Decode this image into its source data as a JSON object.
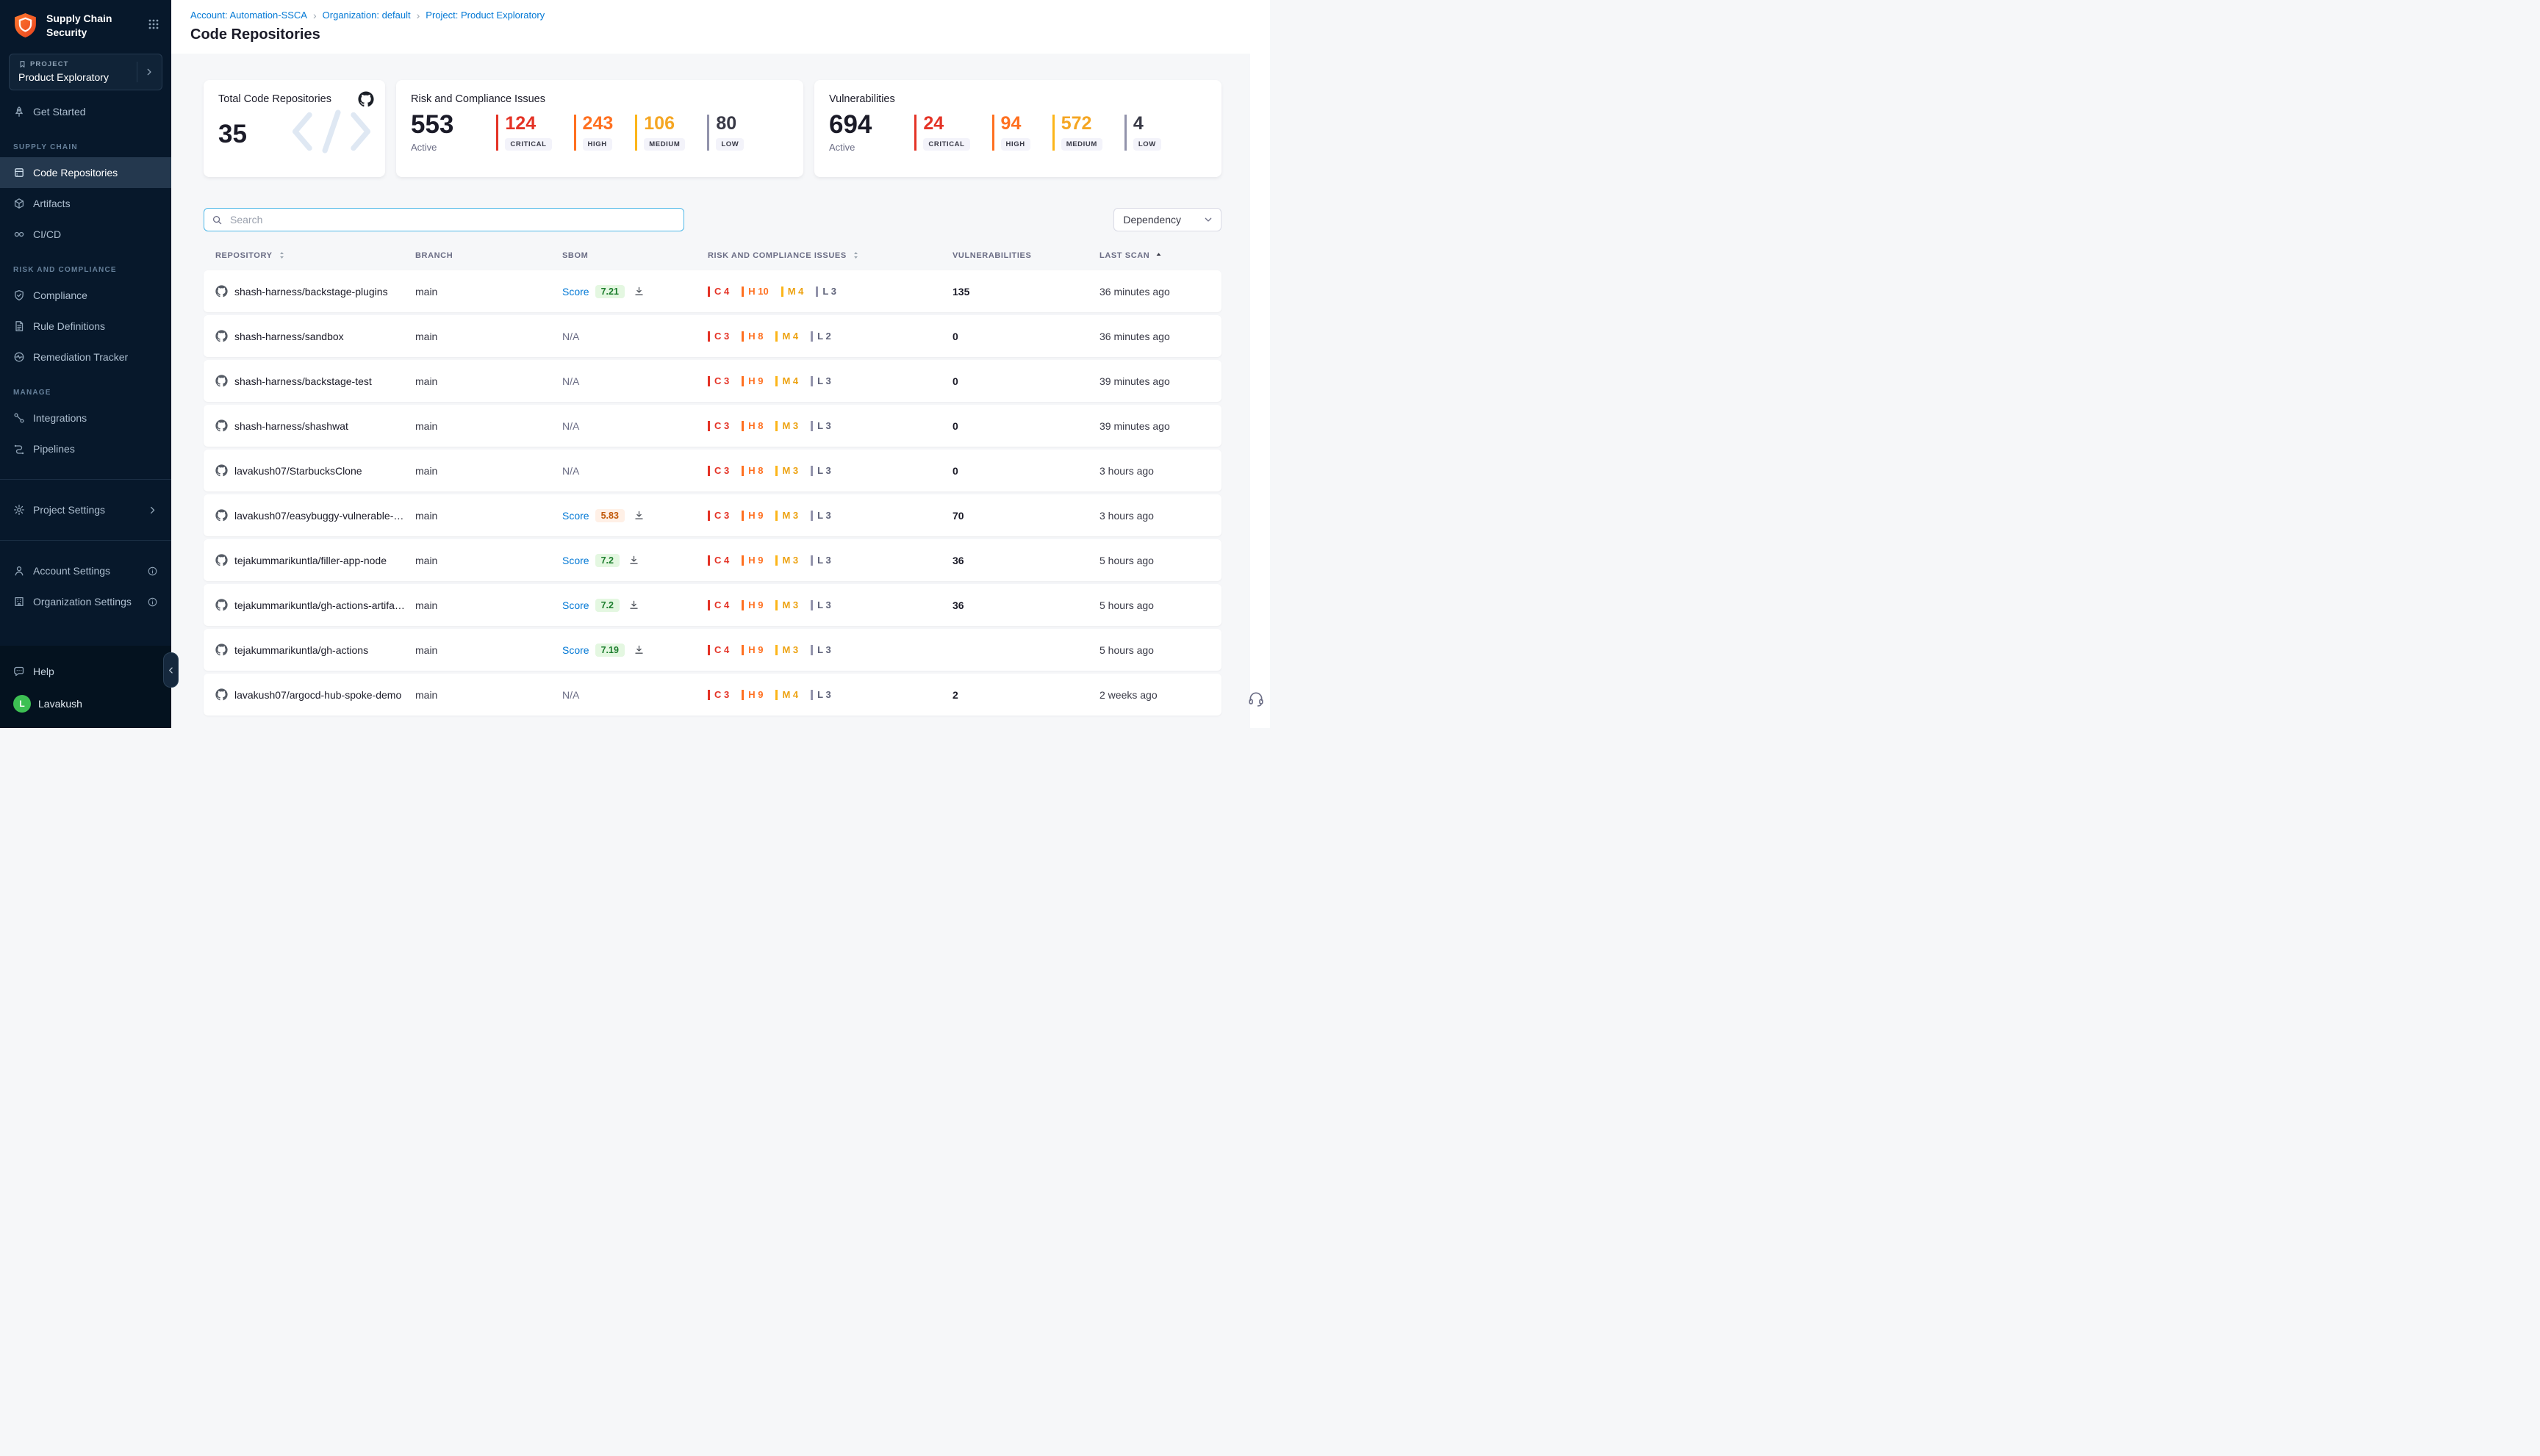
{
  "app": {
    "title": "Supply Chain Security"
  },
  "sidebar": {
    "project_label": "PROJECT",
    "project_name": "Product Exploratory",
    "nav": [
      {
        "label": "Get Started",
        "icon": "rocket"
      },
      {
        "section": "SUPPLY CHAIN"
      },
      {
        "label": "Code Repositories",
        "icon": "repo",
        "selected": true
      },
      {
        "label": "Artifacts",
        "icon": "artifact"
      },
      {
        "label": "CI/CD",
        "icon": "infinity"
      },
      {
        "section": "RISK AND COMPLIANCE"
      },
      {
        "label": "Compliance",
        "icon": "shield"
      },
      {
        "label": "Rule Definitions",
        "icon": "rules"
      },
      {
        "label": "Remediation Tracker",
        "icon": "tracker"
      },
      {
        "section": "MANAGE"
      },
      {
        "label": "Integrations",
        "icon": "integrations"
      },
      {
        "label": "Pipelines",
        "icon": "pipelines"
      },
      {
        "divider": true
      },
      {
        "label": "Project Settings",
        "icon": "gear",
        "chevron": true
      },
      {
        "divider": true
      },
      {
        "label": "Account Settings",
        "icon": "account",
        "info": true
      },
      {
        "label": "Organization Settings",
        "icon": "org",
        "info": true
      }
    ],
    "help_label": "Help",
    "user": {
      "initial": "L",
      "name": "Lavakush"
    }
  },
  "header": {
    "breadcrumbs": [
      {
        "label": "Account: Automation-SSCA"
      },
      {
        "label": "Organization: default"
      },
      {
        "label": "Project: Product Exploratory"
      }
    ],
    "title": "Code Repositories"
  },
  "summary": {
    "repos": {
      "label": "Total Code Repositories",
      "value": "35"
    },
    "risk": {
      "label": "Risk and Compliance Issues",
      "value": "553",
      "sublabel": "Active",
      "stats": [
        {
          "value": "124",
          "label": "CRITICAL",
          "sev": "critical"
        },
        {
          "value": "243",
          "label": "HIGH",
          "sev": "high"
        },
        {
          "value": "106",
          "label": "MEDIUM",
          "sev": "medium"
        },
        {
          "value": "80",
          "label": "LOW",
          "sev": "low"
        }
      ]
    },
    "vulnerabilities": {
      "label": "Vulnerabilities",
      "value": "694",
      "sublabel": "Active",
      "stats": [
        {
          "value": "24",
          "label": "CRITICAL",
          "sev": "critical"
        },
        {
          "value": "94",
          "label": "HIGH",
          "sev": "high"
        },
        {
          "value": "572",
          "label": "MEDIUM",
          "sev": "medium"
        },
        {
          "value": "4",
          "label": "LOW",
          "sev": "low"
        }
      ]
    }
  },
  "toolbar": {
    "search_placeholder": "Search",
    "filter_value": "Dependency"
  },
  "table": {
    "score_label": "Score",
    "na_label": "N/A",
    "columns": [
      {
        "label": "REPOSITORY",
        "sort": "both"
      },
      {
        "label": "BRANCH"
      },
      {
        "label": "SBOM"
      },
      {
        "label": "RISK AND COMPLIANCE ISSUES",
        "sort": "both"
      },
      {
        "label": "VULNERABILITIES"
      },
      {
        "label": "LAST SCAN",
        "sort": "asc"
      }
    ],
    "rows": [
      {
        "repo": "shash-harness/backstage-plugins",
        "branch": "main",
        "sbom": {
          "score": "7.21",
          "tone": "good"
        },
        "risk": {
          "C": 4,
          "H": 10,
          "M": 4,
          "L": 3
        },
        "vulnerabilities": "135",
        "last_scan": "36 minutes ago"
      },
      {
        "repo": "shash-harness/sandbox",
        "branch": "main",
        "sbom": null,
        "risk": {
          "C": 3,
          "H": 8,
          "M": 4,
          "L": 2
        },
        "vulnerabilities": "0",
        "last_scan": "36 minutes ago"
      },
      {
        "repo": "shash-harness/backstage-test",
        "branch": "main",
        "sbom": null,
        "risk": {
          "C": 3,
          "H": 9,
          "M": 4,
          "L": 3
        },
        "vulnerabilities": "0",
        "last_scan": "39 minutes ago"
      },
      {
        "repo": "shash-harness/shashwat",
        "branch": "main",
        "sbom": null,
        "risk": {
          "C": 3,
          "H": 8,
          "M": 3,
          "L": 3
        },
        "vulnerabilities": "0",
        "last_scan": "39 minutes ago"
      },
      {
        "repo": "lavakush07/StarbucksClone",
        "branch": "main",
        "sbom": null,
        "risk": {
          "C": 3,
          "H": 8,
          "M": 3,
          "L": 3
        },
        "vulnerabilities": "0",
        "last_scan": "3 hours ago"
      },
      {
        "repo": "lavakush07/easybuggy-vulnerable-app...",
        "branch": "main",
        "sbom": {
          "score": "5.83",
          "tone": "warn"
        },
        "risk": {
          "C": 3,
          "H": 9,
          "M": 3,
          "L": 3
        },
        "vulnerabilities": "70",
        "last_scan": "3 hours ago"
      },
      {
        "repo": "tejakummarikuntla/filler-app-node",
        "branch": "main",
        "sbom": {
          "score": "7.2",
          "tone": "good"
        },
        "risk": {
          "C": 4,
          "H": 9,
          "M": 3,
          "L": 3
        },
        "vulnerabilities": "36",
        "last_scan": "5 hours ago"
      },
      {
        "repo": "tejakummarikuntla/gh-actions-artifacts",
        "branch": "main",
        "sbom": {
          "score": "7.2",
          "tone": "good"
        },
        "risk": {
          "C": 4,
          "H": 9,
          "M": 3,
          "L": 3
        },
        "vulnerabilities": "36",
        "last_scan": "5 hours ago"
      },
      {
        "repo": "tejakummarikuntla/gh-actions",
        "branch": "main",
        "sbom": {
          "score": "7.19",
          "tone": "good"
        },
        "risk": {
          "C": 4,
          "H": 9,
          "M": 3,
          "L": 3
        },
        "vulnerabilities": "",
        "last_scan": "5 hours ago"
      },
      {
        "repo": "lavakush07/argocd-hub-spoke-demo",
        "branch": "main",
        "sbom": null,
        "risk": {
          "C": 3,
          "H": 9,
          "M": 4,
          "L": 3
        },
        "vulnerabilities": "2",
        "last_scan": "2 weeks ago"
      }
    ]
  },
  "colors": {
    "critical": "#e43326",
    "high": "#ff7020",
    "medium": "#fcb519",
    "low": "#9293ab",
    "link_blue": "#0278d5",
    "sidebar_bg": "#07182b",
    "selected_bg": "#24384e",
    "score_good_bg": "#e4f7e1",
    "score_good_text": "#1b7d2c",
    "score_warn_bg": "#fff0e6",
    "score_warn_text": "#c05809",
    "avatar_green": "#3dc053"
  }
}
